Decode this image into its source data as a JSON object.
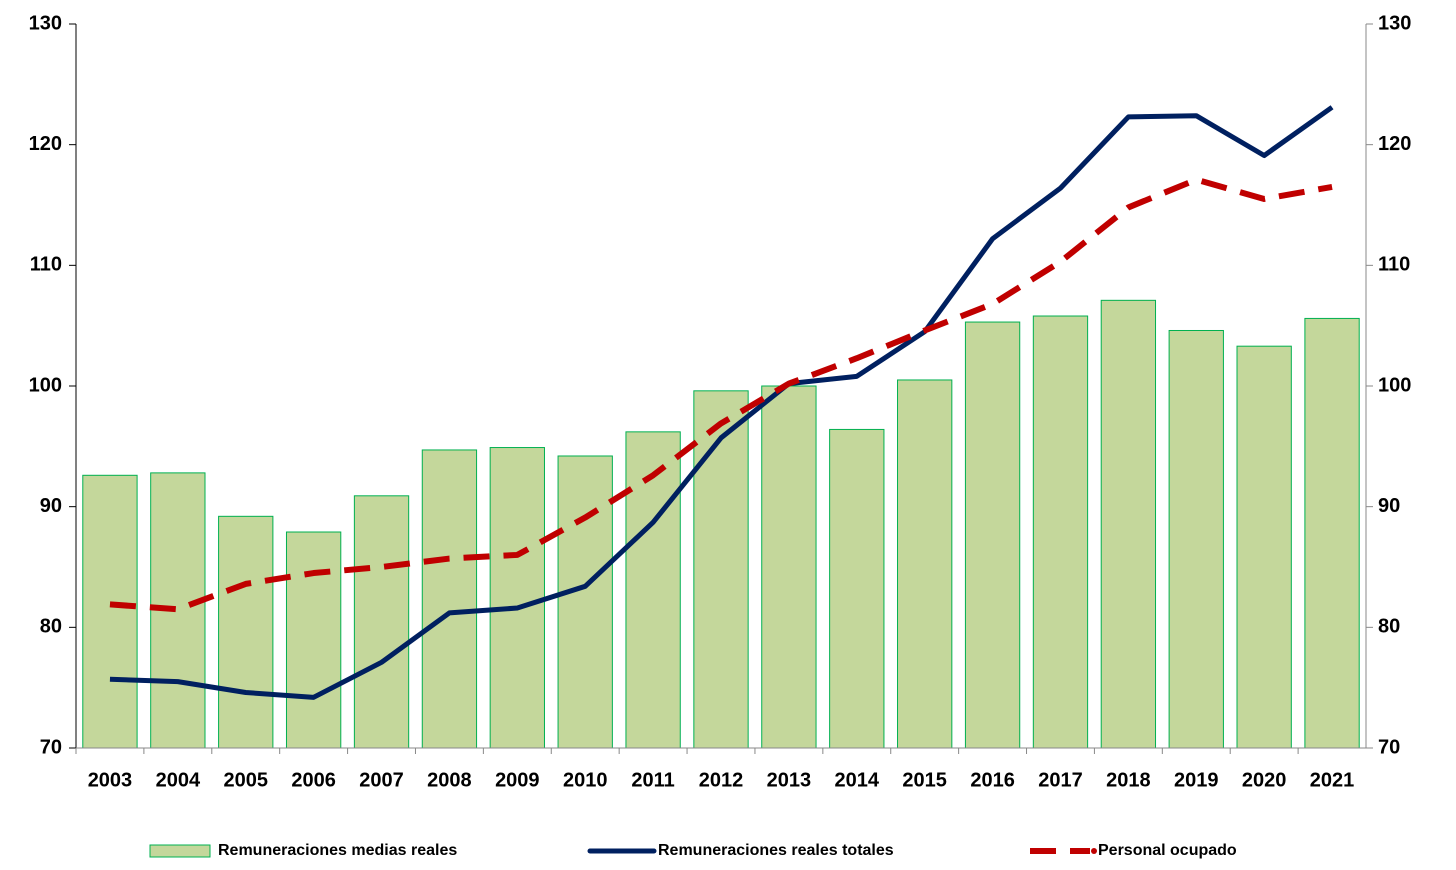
{
  "chart_data": {
    "type": "bar",
    "categories": [
      "2003",
      "2004",
      "2005",
      "2006",
      "2007",
      "2008",
      "2009",
      "2010",
      "2011",
      "2012",
      "2013",
      "2014",
      "2015",
      "2016",
      "2017",
      "2018",
      "2019",
      "2020",
      "2021"
    ],
    "series": [
      {
        "name": "Remuneraciones medias reales",
        "type": "bar",
        "color": "#c4d79b",
        "edge": "#00b050",
        "values": [
          92.6,
          92.8,
          89.2,
          87.9,
          90.9,
          94.7,
          94.9,
          94.2,
          96.2,
          99.6,
          100.0,
          96.4,
          100.5,
          105.3,
          105.8,
          107.1,
          104.6,
          103.3,
          105.6
        ]
      },
      {
        "name": "Remuneraciones reales totales",
        "type": "line",
        "color": "#002060",
        "values": [
          75.7,
          75.5,
          74.6,
          74.2,
          77.1,
          81.2,
          81.6,
          83.4,
          88.7,
          95.7,
          100.2,
          100.8,
          104.5,
          112.2,
          116.4,
          122.3,
          122.4,
          119.1,
          123.1
        ]
      },
      {
        "name": "Personal ocupado",
        "type": "line",
        "dashed": true,
        "color": "#c00000",
        "values": [
          81.9,
          81.5,
          83.6,
          84.5,
          85.0,
          85.7,
          86.0,
          89.1,
          92.6,
          96.9,
          100.2,
          102.3,
          104.6,
          106.8,
          110.3,
          114.8,
          117.1,
          115.5,
          116.5
        ]
      }
    ],
    "ylim": [
      70,
      130
    ],
    "yticks": [
      70,
      80,
      90,
      100,
      110,
      120,
      130
    ],
    "y2lim": [
      70,
      130
    ],
    "y2ticks": [
      70,
      80,
      90,
      100,
      110,
      120,
      130
    ],
    "legend": "bottom"
  }
}
